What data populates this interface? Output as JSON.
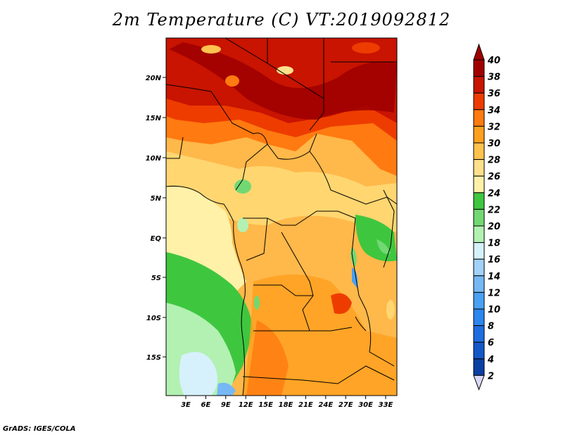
{
  "title": "2m Temperature (C) VT:2019092812",
  "credit": "GrADS: IGES/COLA",
  "map": {
    "region": "Central Africa",
    "lon_range": [
      0,
      35
    ],
    "lat_range": [
      -20,
      25
    ],
    "lat_ticks": [
      "20N",
      "15N",
      "10N",
      "5N",
      "EQ",
      "5S",
      "10S",
      "15S"
    ],
    "lon_ticks": [
      "3E",
      "6E",
      "9E",
      "12E",
      "15E",
      "18E",
      "21E",
      "24E",
      "27E",
      "30E",
      "33E"
    ]
  },
  "colorbar": {
    "labels": [
      "2",
      "4",
      "6",
      "8",
      "10",
      "12",
      "14",
      "16",
      "18",
      "20",
      "22",
      "24",
      "26",
      "28",
      "30",
      "32",
      "34",
      "36",
      "38",
      "40"
    ],
    "colors": [
      "#0a0a78",
      "#0c3fa3",
      "#1459c8",
      "#1e6ee0",
      "#2c86ef",
      "#4aa0f2",
      "#76b8f5",
      "#a2d2f8",
      "#d6f1fb",
      "#b2f1b2",
      "#72d873",
      "#3fc63f",
      "#fff1a8",
      "#ffe08a",
      "#ffc24f",
      "#ffa020",
      "#ff7a10",
      "#ee3c00",
      "#c81400",
      "#a00000"
    ]
  }
}
